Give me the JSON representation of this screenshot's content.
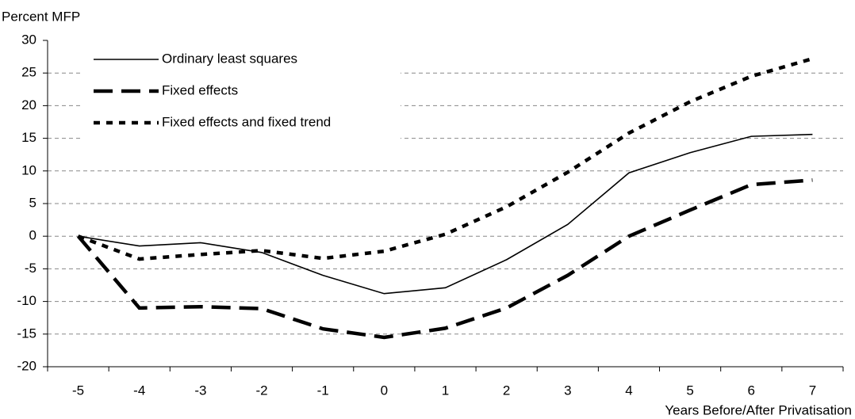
{
  "chart_data": {
    "type": "line",
    "ylabel": "Percent MFP",
    "xlabel": "Years Before/After Privatisation",
    "x": [
      -5,
      -4,
      -3,
      -2,
      -1,
      0,
      1,
      2,
      3,
      4,
      5,
      6,
      7
    ],
    "xlim": [
      -5.5,
      7.5
    ],
    "xticks": [
      -5,
      -4,
      -3,
      -2,
      -1,
      0,
      1,
      2,
      3,
      4,
      5,
      6,
      7
    ],
    "ylim": [
      -20,
      30
    ],
    "yticks": [
      -20,
      -15,
      -10,
      -5,
      0,
      5,
      10,
      15,
      20,
      25,
      30
    ],
    "grid": true,
    "legend": "upper left",
    "series": [
      {
        "name": "Ordinary least squares",
        "color": "#000000",
        "linestyle": "solid",
        "values": [
          0,
          -1.5,
          -1,
          -2.5,
          -6,
          -8.8,
          -7.9,
          -3.6,
          1.8,
          9.7,
          12.8,
          15.3,
          15.6
        ]
      },
      {
        "name": "Fixed effects",
        "color": "#000000",
        "linestyle": "dashed",
        "values": [
          0,
          -11,
          -10.8,
          -11.1,
          -14.2,
          -15.5,
          -14.1,
          -11,
          -6,
          0,
          4,
          7.9,
          8.6
        ]
      },
      {
        "name": "Fixed effects and fixed trend",
        "color": "#000000",
        "linestyle": "dotted",
        "values": [
          0,
          -3.5,
          -2.8,
          -2.2,
          -3.4,
          -2.3,
          0.3,
          4.5,
          9.8,
          15.8,
          20.6,
          24.5,
          27.2
        ]
      }
    ]
  }
}
